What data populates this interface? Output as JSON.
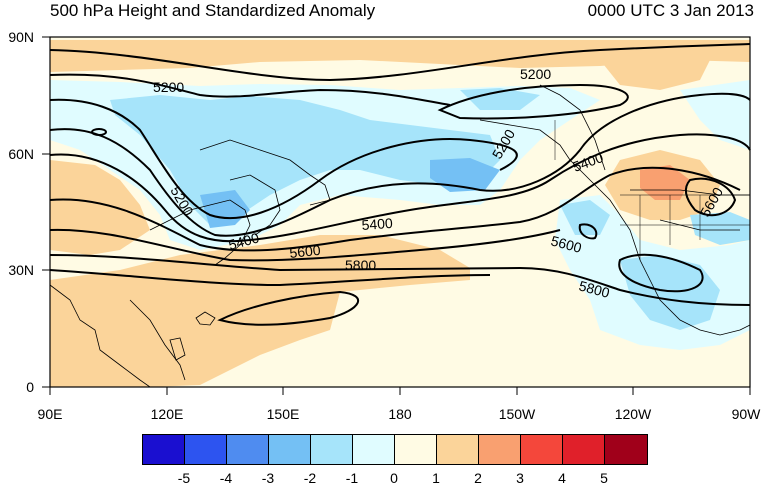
{
  "title": "500 hPa Height and Standardized Anomaly",
  "time_label": "0000 UTC 3 Jan 2013",
  "lat_labels": [
    "90N",
    "60N",
    "30N",
    "0"
  ],
  "lon_labels": [
    "90E",
    "120E",
    "150E",
    "180",
    "150W",
    "120W",
    "90W"
  ],
  "contour_labels": [
    "5200",
    "5200",
    "5200",
    "5200",
    "5400",
    "5400",
    "5400",
    "5600",
    "5600",
    "5600",
    "5800",
    "5800"
  ],
  "colorbar": {
    "colors": [
      "#1a0fd0",
      "#2d54f0",
      "#4f8cf0",
      "#74c0f4",
      "#a6e4fa",
      "#e0fcff",
      "#fffbe4",
      "#fbd49a",
      "#f9a070",
      "#f4473b",
      "#e0202a",
      "#a0001a"
    ],
    "labels": [
      "-5",
      "-4",
      "-3",
      "-2",
      "-1",
      "0",
      "1",
      "2",
      "3",
      "4",
      "5"
    ]
  }
}
